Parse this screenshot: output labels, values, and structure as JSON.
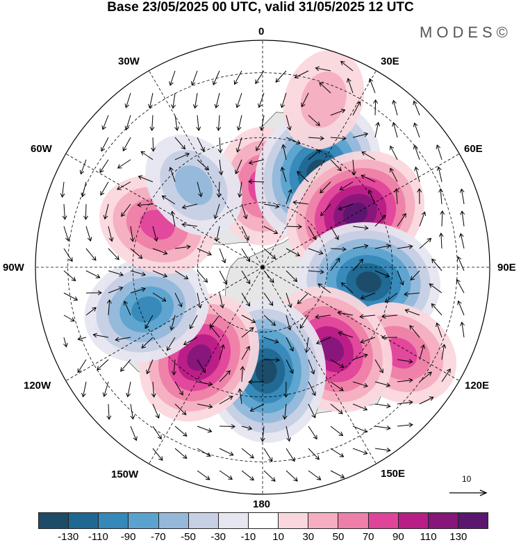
{
  "title": "Base 23/05/2025 00 UTC, valid 31/05/2025 12 UTC",
  "logo": "MODES©",
  "map": {
    "projection": "polar stereographic (north pole)",
    "longitude_labels": {
      "lon_0": "0",
      "lon_30e": "30E",
      "lon_60e": "60E",
      "lon_90e": "90E",
      "lon_120e": "120E",
      "lon_150e": "150E",
      "lon_180": "180",
      "lon_150w": "150W",
      "lon_120w": "120W",
      "lon_90w": "90W",
      "lon_60w": "60W",
      "lon_30w": "30W"
    },
    "background_colors": {
      "land": "#e6e6e6",
      "ocean": "#ffffff",
      "coast": "#555555"
    },
    "anomaly_cells": [
      {
        "lon": 0,
        "colat": 25,
        "sign": "positive",
        "level": 70
      },
      {
        "lon": 30,
        "colat": 34,
        "sign": "negative",
        "level": -130
      },
      {
        "lon": 60,
        "colat": 33,
        "sign": "positive",
        "level": 130
      },
      {
        "lon": 98,
        "colat": 33,
        "sign": "negative",
        "level": -130
      },
      {
        "lon": 122,
        "colat": 50,
        "sign": "positive",
        "level": 70
      },
      {
        "lon": 140,
        "colat": 33,
        "sign": "positive",
        "level": 110
      },
      {
        "lon": 178,
        "colat": 32,
        "sign": "negative",
        "level": -130
      },
      {
        "lon": -145,
        "colat": 34,
        "sign": "positive",
        "level": 110
      },
      {
        "lon": -110,
        "colat": 38,
        "sign": "negative",
        "level": -90
      },
      {
        "lon": -68,
        "colat": 35,
        "sign": "positive",
        "level": 70
      },
      {
        "lon": -40,
        "colat": 33,
        "sign": "negative",
        "level": -50
      },
      {
        "lon": 20,
        "colat": 55,
        "sign": "positive",
        "level": 30
      }
    ]
  },
  "colorbar": {
    "colors": [
      "#1d4b68",
      "#1f6891",
      "#3588b8",
      "#5ba3cf",
      "#94b8da",
      "#c6cfe4",
      "#e6e6f0",
      "#ffffff",
      "#fad7dd",
      "#f4aec0",
      "#ee7fa8",
      "#e0449a",
      "#b81e86",
      "#86167a",
      "#5b1670"
    ],
    "tick_labels": [
      "-130",
      "-110",
      "-90",
      "-70",
      "-50",
      "-30",
      "-10",
      "10",
      "30",
      "50",
      "70",
      "90",
      "110",
      "130"
    ]
  },
  "reference_vector": {
    "label": "10"
  }
}
